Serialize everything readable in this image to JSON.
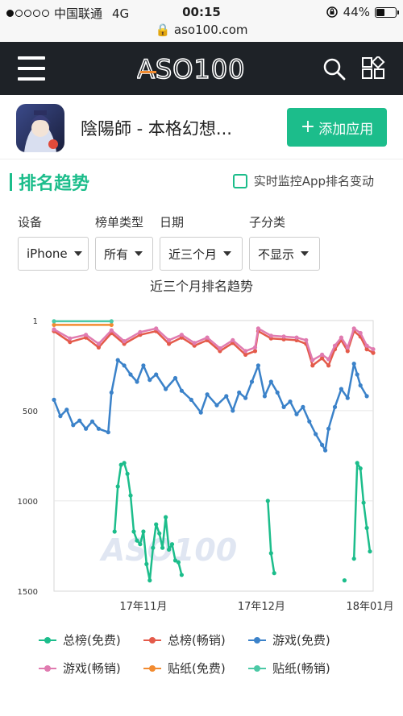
{
  "status_bar": {
    "carrier": "中国联通",
    "network": "4G",
    "time": "00:15",
    "battery": "44%",
    "battery_level": 0.44,
    "url": "aso100.com"
  },
  "nav": {
    "logo_text": "ASO100"
  },
  "app": {
    "name": "陰陽師 - 本格幻想...",
    "add_button": "添加应用"
  },
  "section": {
    "title": "排名趋势",
    "monitor_label": "实时监控App排名变动"
  },
  "filters": [
    {
      "label": "设备",
      "value": "iPhone"
    },
    {
      "label": "榜单类型",
      "value": "所有"
    },
    {
      "label": "日期",
      "value": "近三个月"
    },
    {
      "label": "子分类",
      "value": "不显示"
    }
  ],
  "colors": {
    "accent": "#1cbd8b",
    "navbar": "#1e2227"
  },
  "chart_data": {
    "type": "line",
    "title": "近三个月排名趋势",
    "watermark": "ASO100",
    "y_reversed": true,
    "ylim": [
      1,
      1500
    ],
    "yticks": [
      "1",
      "500",
      "1000",
      "1500"
    ],
    "x_ticks": [
      "17年11月",
      "17年12月",
      "18年01月"
    ],
    "x_range": [
      0,
      100
    ],
    "x_tick_positions": [
      28,
      65,
      99
    ],
    "grid": true,
    "legend_position": "bottom",
    "series": [
      {
        "name": "总榜(免费)",
        "color": "#1cbd8b",
        "segments": [
          [
            [
              19,
              1170
            ],
            [
              20,
              920
            ],
            [
              21,
              800
            ],
            [
              22,
              790
            ],
            [
              23,
              850
            ],
            [
              24,
              970
            ],
            [
              25,
              1170
            ],
            [
              26,
              1220
            ],
            [
              27,
              1240
            ],
            [
              28,
              1170
            ],
            [
              29,
              1350
            ],
            [
              30,
              1440
            ],
            [
              31,
              1260
            ],
            [
              32,
              1130
            ],
            [
              33,
              1180
            ],
            [
              34,
              1260
            ],
            [
              35,
              1090
            ],
            [
              36,
              1270
            ],
            [
              37,
              1240
            ],
            [
              38,
              1330
            ],
            [
              39,
              1340
            ],
            [
              40,
              1410
            ]
          ],
          [
            [
              67,
              1000
            ],
            [
              68,
              1290
            ],
            [
              69,
              1400
            ]
          ],
          [
            [
              91,
              1440
            ]
          ],
          [
            [
              94,
              1320
            ],
            [
              95,
              790
            ],
            [
              96,
              820
            ],
            [
              97,
              1010
            ],
            [
              98,
              1150
            ],
            [
              99,
              1280
            ]
          ]
        ]
      },
      {
        "name": "总榜(畅销)",
        "color": "#e45a4a",
        "segments": [
          [
            [
              0,
              60
            ],
            [
              5,
              120
            ],
            [
              10,
              95
            ],
            [
              14,
              150
            ],
            [
              18,
              70
            ],
            [
              22,
              130
            ],
            [
              27,
              80
            ],
            [
              32,
              60
            ],
            [
              36,
              130
            ],
            [
              40,
              95
            ],
            [
              44,
              140
            ],
            [
              48,
              110
            ],
            [
              52,
              170
            ],
            [
              56,
              125
            ],
            [
              60,
              190
            ],
            [
              63,
              170
            ],
            [
              64,
              60
            ],
            [
              68,
              100
            ],
            [
              72,
              105
            ],
            [
              76,
              110
            ],
            [
              79,
              130
            ],
            [
              81,
              250
            ],
            [
              84,
              210
            ],
            [
              86,
              250
            ],
            [
              88,
              160
            ],
            [
              90,
              110
            ],
            [
              92,
              170
            ],
            [
              94,
              60
            ],
            [
              96,
              90
            ],
            [
              98,
              160
            ],
            [
              100,
              180
            ]
          ]
        ]
      },
      {
        "name": "游戏(免费)",
        "color": "#3b82c9",
        "segments": [
          [
            [
              0,
              440
            ],
            [
              2,
              530
            ],
            [
              4,
              495
            ],
            [
              6,
              580
            ],
            [
              8,
              555
            ],
            [
              10,
              600
            ],
            [
              12,
              560
            ],
            [
              14,
              600
            ],
            [
              17,
              620
            ],
            [
              18,
              400
            ],
            [
              20,
              220
            ],
            [
              22,
              250
            ],
            [
              24,
              300
            ],
            [
              26,
              340
            ],
            [
              28,
              250
            ],
            [
              30,
              330
            ],
            [
              32,
              300
            ],
            [
              35,
              380
            ],
            [
              38,
              320
            ],
            [
              40,
              390
            ],
            [
              43,
              440
            ],
            [
              46,
              510
            ],
            [
              48,
              410
            ],
            [
              51,
              470
            ],
            [
              54,
              420
            ],
            [
              56,
              500
            ],
            [
              58,
              400
            ],
            [
              60,
              430
            ],
            [
              62,
              340
            ],
            [
              64,
              250
            ],
            [
              66,
              420
            ],
            [
              68,
              340
            ],
            [
              70,
              400
            ],
            [
              72,
              480
            ],
            [
              74,
              450
            ],
            [
              76,
              520
            ],
            [
              78,
              480
            ],
            [
              80,
              560
            ],
            [
              82,
              630
            ],
            [
              84,
              690
            ],
            [
              85,
              720
            ],
            [
              86,
              600
            ],
            [
              88,
              480
            ],
            [
              90,
              380
            ],
            [
              92,
              430
            ],
            [
              94,
              240
            ],
            [
              95,
              300
            ],
            [
              96,
              360
            ],
            [
              98,
              420
            ]
          ]
        ]
      },
      {
        "name": "游戏(畅销)",
        "color": "#e07bb0",
        "segments": [
          [
            [
              0,
              50
            ],
            [
              5,
              100
            ],
            [
              10,
              80
            ],
            [
              14,
              130
            ],
            [
              18,
              55
            ],
            [
              22,
              115
            ],
            [
              27,
              65
            ],
            [
              32,
              45
            ],
            [
              36,
              110
            ],
            [
              40,
              80
            ],
            [
              44,
              125
            ],
            [
              48,
              95
            ],
            [
              52,
              155
            ],
            [
              56,
              110
            ],
            [
              60,
              170
            ],
            [
              63,
              150
            ],
            [
              64,
              45
            ],
            [
              68,
              85
            ],
            [
              72,
              90
            ],
            [
              76,
              95
            ],
            [
              79,
              110
            ],
            [
              81,
              220
            ],
            [
              84,
              190
            ],
            [
              86,
              215
            ],
            [
              88,
              140
            ],
            [
              90,
              95
            ],
            [
              92,
              150
            ],
            [
              94,
              45
            ],
            [
              96,
              70
            ],
            [
              98,
              140
            ],
            [
              100,
              160
            ]
          ]
        ]
      },
      {
        "name": "贴纸(免费)",
        "color": "#f28b30",
        "segments": [
          [
            [
              0,
              25
            ],
            [
              18,
              25
            ]
          ]
        ]
      },
      {
        "name": "贴纸(畅销)",
        "color": "#4cc9a6",
        "segments": [
          [
            [
              0,
              5
            ],
            [
              18,
              5
            ]
          ]
        ]
      }
    ]
  }
}
